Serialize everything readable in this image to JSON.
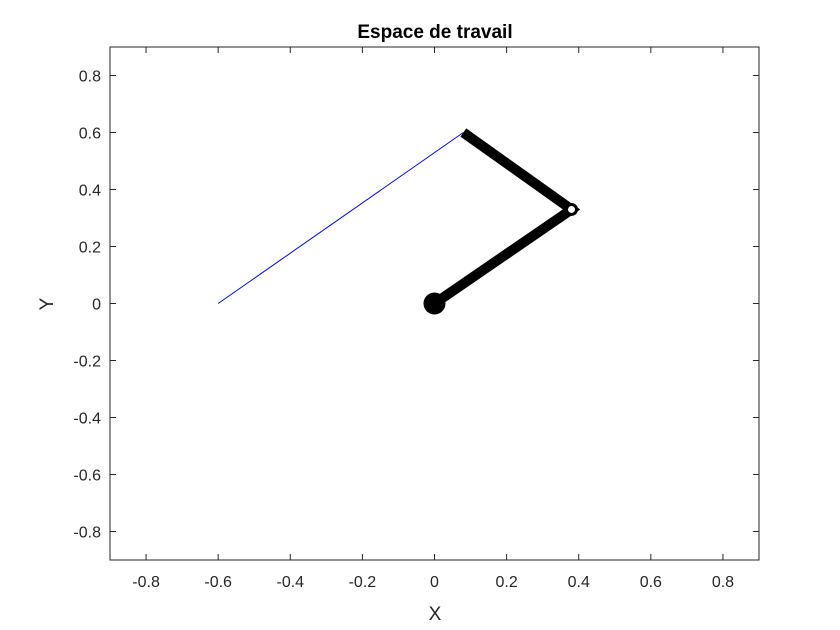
{
  "chart_data": {
    "type": "line",
    "title": "Espace de travail",
    "xlabel": "X",
    "ylabel": "Y",
    "xlim": [
      -0.9,
      0.9
    ],
    "ylim": [
      -0.9,
      0.9
    ],
    "xticks": [
      -0.8,
      -0.6,
      -0.4,
      -0.2,
      0,
      0.2,
      0.4,
      0.6,
      0.8
    ],
    "xtick_labels": [
      "-0.8",
      "-0.6",
      "-0.4",
      "-0.2",
      "0",
      "0.2",
      "0.4",
      "0.6",
      "0.8"
    ],
    "yticks": [
      -0.8,
      -0.6,
      -0.4,
      -0.2,
      0,
      0.2,
      0.4,
      0.6,
      0.8
    ],
    "ytick_labels": [
      "-0.8",
      "-0.6",
      "-0.4",
      "-0.2",
      "0",
      "0.2",
      "0.4",
      "0.6",
      "0.8"
    ],
    "grid": false,
    "series": [
      {
        "style": "thin line",
        "color": "#0000ff",
        "x": [
          -0.6,
          0.08
        ],
        "y": [
          0.0,
          0.6
        ]
      },
      {
        "style": "thick line (robot arm)",
        "color": "#000000",
        "x": [
          0.0,
          0.38,
          0.08
        ],
        "y": [
          0.0,
          0.33,
          0.6
        ]
      }
    ],
    "markers": [
      {
        "shape": "filled circle",
        "color": "#000000",
        "x": 0.0,
        "y": 0.0
      },
      {
        "shape": "open circle",
        "color": "#000000",
        "x": 0.38,
        "y": 0.33
      }
    ]
  }
}
